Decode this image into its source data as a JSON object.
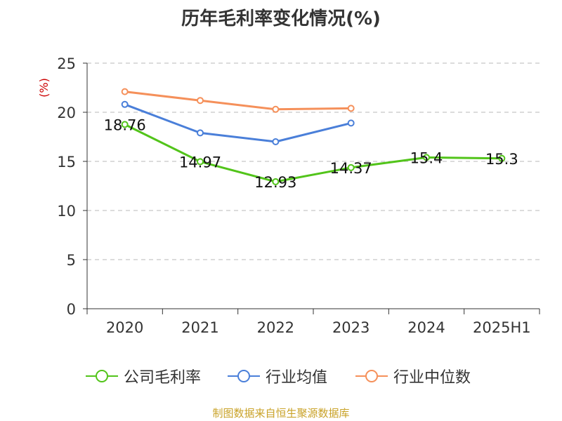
{
  "title": "历年毛利率变化情况(%)",
  "source": "制图数据来自恒生聚源数据库",
  "chart_data": {
    "type": "line",
    "title": "历年毛利率变化情况(%)",
    "ylabel": "(%)",
    "xlabel": "",
    "ylim": [
      0,
      25
    ],
    "yticks": [
      0,
      5,
      10,
      15,
      20,
      25
    ],
    "categories": [
      "2020",
      "2021",
      "2022",
      "2023",
      "2024",
      "2025H1"
    ],
    "grid": true,
    "legend_position": "bottom",
    "series": [
      {
        "name": "公司毛利率",
        "color": "#52c41a",
        "values": [
          18.76,
          14.97,
          12.93,
          14.37,
          15.4,
          15.3
        ],
        "labels": [
          "18.76",
          "14.97",
          "12.93",
          "14.37",
          "15.4",
          "15.3"
        ]
      },
      {
        "name": "行业均值",
        "color": "#4a7fd9",
        "values": [
          20.8,
          17.9,
          17.0,
          18.9,
          null,
          null
        ]
      },
      {
        "name": "行业中位数",
        "color": "#f5905a",
        "values": [
          22.1,
          21.2,
          20.3,
          20.4,
          null,
          null
        ]
      }
    ]
  }
}
